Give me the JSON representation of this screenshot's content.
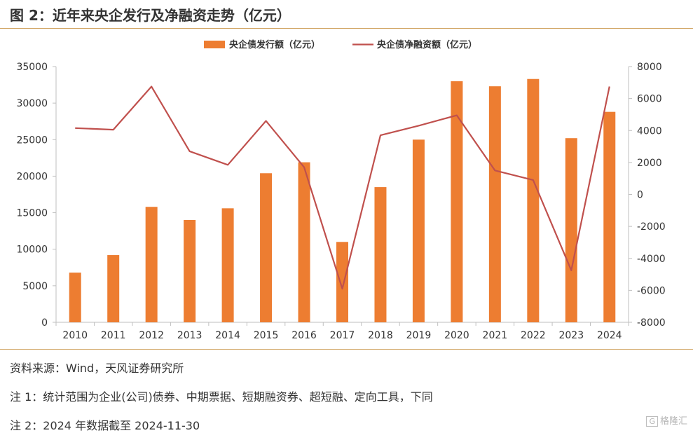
{
  "header": {
    "title": "图 2：近年来央企发行及净融资走势（亿元）"
  },
  "chart_data": {
    "type": "bar+line",
    "categories": [
      "2010",
      "2011",
      "2012",
      "2013",
      "2014",
      "2015",
      "2016",
      "2017",
      "2018",
      "2019",
      "2020",
      "2021",
      "2022",
      "2023",
      "2024"
    ],
    "series": [
      {
        "name": "央企债发行额（亿元）",
        "type": "bar",
        "axis": "left",
        "color": "#ed7d31",
        "values": [
          6800,
          9200,
          15800,
          14000,
          15600,
          20400,
          21900,
          11000,
          18500,
          25000,
          33000,
          32300,
          33300,
          25200,
          28800
        ]
      },
      {
        "name": "央企债净融资额（亿元）",
        "type": "line",
        "axis": "right",
        "color": "#c0504d",
        "values": [
          4150,
          4050,
          6750,
          2700,
          1850,
          4600,
          1700,
          -5900,
          3700,
          4300,
          4950,
          1500,
          900,
          -4750,
          6750
        ]
      }
    ],
    "y_left": {
      "min": 0,
      "max": 35000,
      "ticks": [
        "0",
        "5000",
        "10000",
        "15000",
        "20000",
        "25000",
        "30000",
        "35000"
      ]
    },
    "y_right": {
      "min": -8000,
      "max": 8000,
      "ticks": [
        "-8000",
        "-6000",
        "-4000",
        "-2000",
        "0",
        "2000",
        "4000",
        "6000",
        "8000"
      ]
    },
    "legend_position": "top-center",
    "grid": false
  },
  "footer": {
    "source": "资料来源：Wind，天风证券研究所",
    "note1": "注 1：统计范围为企业(公司)债券、中期票据、短期融资券、超短融、定向工具，下同",
    "note2": "注 2：2024 年数据截至 2024-11-30",
    "watermark": "格隆汇",
    "watermark_box": "G"
  }
}
